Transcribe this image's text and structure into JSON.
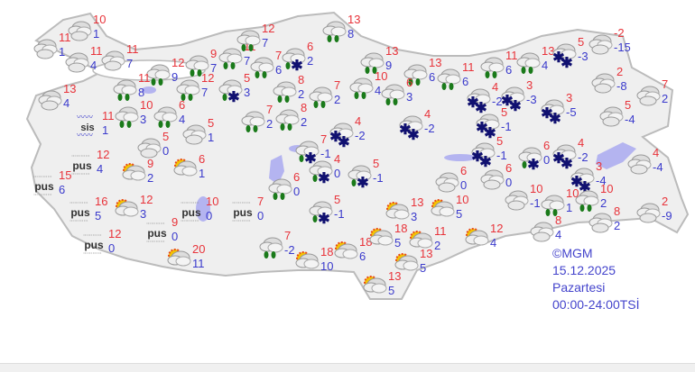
{
  "colors": {
    "max": "#e8333a",
    "min": "#3a3acc",
    "land": "#efefef",
    "lake": "#b4b4f0",
    "rain_drop": "#1a7a1a",
    "snow": "#101070"
  },
  "legend": {
    "source": "©MGM",
    "date": "15.12.2025",
    "day": "Pazartesi",
    "period": "00:00-24:00TSİ"
  },
  "labels": {
    "fog": "pus",
    "mist": "sis"
  },
  "stations": [
    {
      "c": "cloudy",
      "max": "10",
      "min": "1"
    },
    {
      "c": "cloudy",
      "max": "11",
      "min": "1"
    },
    {
      "c": "cloudy",
      "max": "11",
      "min": "4"
    },
    {
      "c": "cloudy",
      "max": "11",
      "min": "7"
    },
    {
      "c": "cloudy",
      "max": "13",
      "min": "4"
    },
    {
      "c": "rain",
      "max": "12",
      "min": "9"
    },
    {
      "c": "rain",
      "max": "11",
      "min": "8"
    },
    {
      "c": "rain",
      "max": "9",
      "min": "7"
    },
    {
      "c": "rain",
      "max": "12",
      "min": "7"
    },
    {
      "c": "rain",
      "max": "11",
      "min": "7"
    },
    {
      "c": "rain",
      "max": "12",
      "min": "7"
    },
    {
      "c": "rainsnow",
      "max": "5",
      "min": "3"
    },
    {
      "c": "rain",
      "max": "7",
      "min": "6"
    },
    {
      "c": "rainsnow",
      "max": "6",
      "min": "2"
    },
    {
      "c": "rain",
      "max": "13",
      "min": "8"
    },
    {
      "c": "rain",
      "max": "13",
      "min": "9"
    },
    {
      "c": "rain",
      "max": "13",
      "min": "6"
    },
    {
      "c": "rain",
      "max": "11",
      "min": "6"
    },
    {
      "c": "rain",
      "max": "11",
      "min": "6"
    },
    {
      "c": "rain",
      "max": "13",
      "min": "4"
    },
    {
      "c": "snow",
      "max": "5",
      "min": "-3"
    },
    {
      "c": "cloudy",
      "max": "-2",
      "min": "-15"
    },
    {
      "c": "cloudy",
      "max": "2",
      "min": "-8"
    },
    {
      "c": "cloudy",
      "max": "7",
      "min": "2"
    },
    {
      "c": "cloudy",
      "max": "5",
      "min": "-4"
    },
    {
      "c": "snow",
      "max": "3",
      "min": "-5"
    },
    {
      "c": "snow",
      "max": "3",
      "min": "-3"
    },
    {
      "c": "snow",
      "max": "4",
      "min": "-2"
    },
    {
      "c": "snow",
      "max": "5",
      "min": "-1"
    },
    {
      "c": "rain",
      "max": "10",
      "min": "3"
    },
    {
      "c": "rain",
      "max": "6",
      "min": "4"
    },
    {
      "c": "mist",
      "max": "11",
      "min": "1"
    },
    {
      "c": "rain",
      "max": "8",
      "min": "2"
    },
    {
      "c": "rain",
      "max": "7",
      "min": "2"
    },
    {
      "c": "rain",
      "max": "10",
      "min": "4"
    },
    {
      "c": "rain",
      "max": "6",
      "min": "3"
    },
    {
      "c": "rain",
      "max": "7",
      "min": "2"
    },
    {
      "c": "rain",
      "max": "8",
      "min": "2"
    },
    {
      "c": "snow",
      "max": "4",
      "min": "-2"
    },
    {
      "c": "snow",
      "max": "4",
      "min": "-2"
    },
    {
      "c": "cloudy",
      "max": "5",
      "min": "1"
    },
    {
      "c": "cloudy",
      "max": "5",
      "min": "0"
    },
    {
      "c": "rainsnow",
      "max": "7",
      "min": "-1"
    },
    {
      "c": "rainsnow",
      "max": "4",
      "min": "0"
    },
    {
      "c": "rainsnow",
      "max": "5",
      "min": "-1"
    },
    {
      "c": "rain",
      "max": "6",
      "min": "0"
    },
    {
      "c": "rainsnow",
      "max": "5",
      "min": "-1"
    },
    {
      "c": "fog",
      "max": "12",
      "min": "4"
    },
    {
      "c": "fog",
      "max": "15",
      "min": "6"
    },
    {
      "c": "partly",
      "max": "9",
      "min": "2"
    },
    {
      "c": "partly",
      "max": "6",
      "min": "1"
    },
    {
      "c": "fog",
      "max": "16",
      "min": "5"
    },
    {
      "c": "partly",
      "max": "12",
      "min": "3"
    },
    {
      "c": "fog",
      "max": "10",
      "min": "0"
    },
    {
      "c": "fog",
      "max": "7",
      "min": "0"
    },
    {
      "c": "fog",
      "max": "9",
      "min": "0"
    },
    {
      "c": "fog",
      "max": "12",
      "min": "0"
    },
    {
      "c": "partly",
      "max": "20",
      "min": "11"
    },
    {
      "c": "rain",
      "max": "7",
      "min": "-2"
    },
    {
      "c": "partly",
      "max": "18",
      "min": "10"
    },
    {
      "c": "partly",
      "max": "18",
      "min": "6"
    },
    {
      "c": "partly",
      "max": "18",
      "min": "5"
    },
    {
      "c": "partly",
      "max": "13",
      "min": "3"
    },
    {
      "c": "partly",
      "max": "11",
      "min": "2"
    },
    {
      "c": "partly",
      "max": "13",
      "min": "5"
    },
    {
      "c": "partly",
      "max": "13",
      "min": "5"
    },
    {
      "c": "partly",
      "max": "10",
      "min": "5"
    },
    {
      "c": "cloudy",
      "max": "6",
      "min": "0"
    },
    {
      "c": "snow",
      "max": "5",
      "min": "-1"
    },
    {
      "c": "cloudy",
      "max": "6",
      "min": "0"
    },
    {
      "c": "rainsnow",
      "max": "6",
      "min": "0"
    },
    {
      "c": "snow",
      "max": "4",
      "min": "-2"
    },
    {
      "c": "snow",
      "max": "3",
      "min": "-4"
    },
    {
      "c": "cloudy",
      "max": "4",
      "min": "-4"
    },
    {
      "c": "cloudy",
      "max": "10",
      "min": "-1"
    },
    {
      "c": "rain",
      "max": "10",
      "min": "1"
    },
    {
      "c": "rain",
      "max": "10",
      "min": "2"
    },
    {
      "c": "cloudy",
      "max": "2",
      "min": "-9"
    },
    {
      "c": "cloudy",
      "max": "8",
      "min": "2"
    },
    {
      "c": "cloudy",
      "max": "8",
      "min": "4"
    },
    {
      "c": "partly",
      "max": "12",
      "min": "4"
    }
  ]
}
